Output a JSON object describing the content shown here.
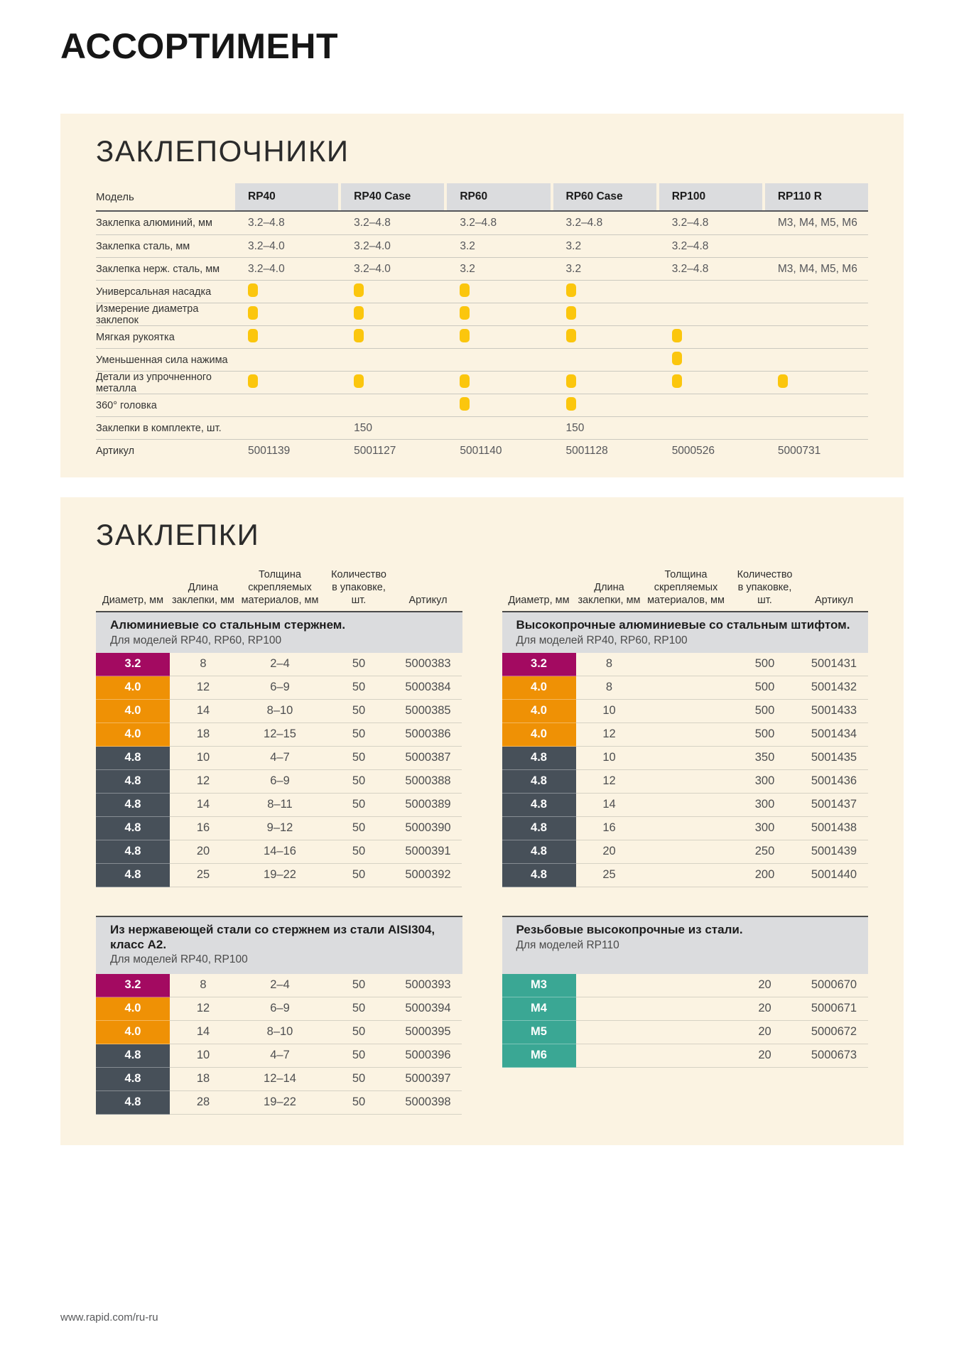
{
  "page": {
    "title": "АССОРТИМЕНТ",
    "footer_url": "www.rapid.com/ru-ru"
  },
  "colors": {
    "panel_bg": "#FBF3E2",
    "band_bg": "#DBDCDE",
    "dot_yellow": "#FBC60D",
    "magenta": "#A30A61",
    "orange": "#EF9105",
    "slate": "#475059",
    "teal": "#3AA794"
  },
  "riveters": {
    "section_title": "ЗАКЛЕПОЧНИКИ",
    "col_header": "Модель",
    "models": [
      "RP40",
      "RP40 Case",
      "RP60",
      "RP60 Case",
      "RP100",
      "RP110 R"
    ],
    "rows": [
      {
        "label": "Заклепка алюминий, мм",
        "type": "text",
        "values": [
          "3.2–4.8",
          "3.2–4.8",
          "3.2–4.8",
          "3.2–4.8",
          "3.2–4.8",
          "M3, M4, M5, M6"
        ]
      },
      {
        "label": "Заклепка сталь, мм",
        "type": "text",
        "values": [
          "3.2–4.0",
          "3.2–4.0",
          "3.2",
          "3.2",
          "3.2–4.8",
          ""
        ]
      },
      {
        "label": "Заклепка нерж. сталь, мм",
        "type": "text",
        "values": [
          "3.2–4.0",
          "3.2–4.0",
          "3.2",
          "3.2",
          "3.2–4.8",
          "M3, M4, M5, M6"
        ]
      },
      {
        "label": "Универсальная насадка",
        "type": "dot",
        "values": [
          true,
          true,
          true,
          true,
          false,
          false
        ]
      },
      {
        "label": "Измерение диаметра заклепок",
        "type": "dot",
        "values": [
          true,
          true,
          true,
          true,
          false,
          false
        ]
      },
      {
        "label": "Мягкая рукоятка",
        "type": "dot",
        "values": [
          true,
          true,
          true,
          true,
          true,
          false
        ]
      },
      {
        "label": "Уменьшенная сила нажима",
        "type": "dot",
        "values": [
          false,
          false,
          false,
          false,
          true,
          false
        ]
      },
      {
        "label": "Детали из упрочненного металла",
        "type": "dot",
        "values": [
          true,
          true,
          true,
          true,
          true,
          true
        ]
      },
      {
        "label": "360° головка",
        "type": "dot",
        "values": [
          false,
          false,
          true,
          true,
          false,
          false
        ]
      },
      {
        "label": "Заклепки в комплекте, шт.",
        "type": "text",
        "values": [
          "",
          "150",
          "",
          "150",
          "",
          ""
        ]
      },
      {
        "label": "Артикул",
        "type": "text",
        "values": [
          "5001139",
          "5001127",
          "5001140",
          "5001128",
          "5000526",
          "5000731"
        ]
      }
    ]
  },
  "rivets": {
    "section_title": "ЗАКЛЕПКИ",
    "col_headers": [
      "Диаметр, мм",
      "Длина\nзаклепки, мм",
      "Толщина\nскрепляемых\nматериалов, мм",
      "Количество\nв упаковке, шт.",
      "Артикул"
    ],
    "tables": [
      {
        "title": "Алюминиевые со стальным стержнем.",
        "subtitle": "Для моделей RP40, RP60, RP100",
        "show_headers": true,
        "rows": [
          {
            "diameter": "3.2",
            "color": "magenta",
            "length": "8",
            "thickness": "2–4",
            "qty": "50",
            "sku": "5000383"
          },
          {
            "diameter": "4.0",
            "color": "orange",
            "length": "12",
            "thickness": "6–9",
            "qty": "50",
            "sku": "5000384"
          },
          {
            "diameter": "4.0",
            "color": "orange",
            "length": "14",
            "thickness": "8–10",
            "qty": "50",
            "sku": "5000385"
          },
          {
            "diameter": "4.0",
            "color": "orange",
            "length": "18",
            "thickness": "12–15",
            "qty": "50",
            "sku": "5000386"
          },
          {
            "diameter": "4.8",
            "color": "slate",
            "length": "10",
            "thickness": "4–7",
            "qty": "50",
            "sku": "5000387"
          },
          {
            "diameter": "4.8",
            "color": "slate",
            "length": "12",
            "thickness": "6–9",
            "qty": "50",
            "sku": "5000388"
          },
          {
            "diameter": "4.8",
            "color": "slate",
            "length": "14",
            "thickness": "8–11",
            "qty": "50",
            "sku": "5000389"
          },
          {
            "diameter": "4.8",
            "color": "slate",
            "length": "16",
            "thickness": "9–12",
            "qty": "50",
            "sku": "5000390"
          },
          {
            "diameter": "4.8",
            "color": "slate",
            "length": "20",
            "thickness": "14–16",
            "qty": "50",
            "sku": "5000391"
          },
          {
            "diameter": "4.8",
            "color": "slate",
            "length": "25",
            "thickness": "19–22",
            "qty": "50",
            "sku": "5000392"
          }
        ]
      },
      {
        "title": "Высокопрочные алюминиевые со стальным штифтом.",
        "subtitle": "Для моделей RP40, RP60, RP100",
        "show_headers": true,
        "rows": [
          {
            "diameter": "3.2",
            "color": "magenta",
            "length": "8",
            "thickness": "",
            "qty": "500",
            "sku": "5001431"
          },
          {
            "diameter": "4.0",
            "color": "orange",
            "length": "8",
            "thickness": "",
            "qty": "500",
            "sku": "5001432"
          },
          {
            "diameter": "4.0",
            "color": "orange",
            "length": "10",
            "thickness": "",
            "qty": "500",
            "sku": "5001433"
          },
          {
            "diameter": "4.0",
            "color": "orange",
            "length": "12",
            "thickness": "",
            "qty": "500",
            "sku": "5001434"
          },
          {
            "diameter": "4.8",
            "color": "slate",
            "length": "10",
            "thickness": "",
            "qty": "350",
            "sku": "5001435"
          },
          {
            "diameter": "4.8",
            "color": "slate",
            "length": "12",
            "thickness": "",
            "qty": "300",
            "sku": "5001436"
          },
          {
            "diameter": "4.8",
            "color": "slate",
            "length": "14",
            "thickness": "",
            "qty": "300",
            "sku": "5001437"
          },
          {
            "diameter": "4.8",
            "color": "slate",
            "length": "16",
            "thickness": "",
            "qty": "300",
            "sku": "5001438"
          },
          {
            "diameter": "4.8",
            "color": "slate",
            "length": "20",
            "thickness": "",
            "qty": "250",
            "sku": "5001439"
          },
          {
            "diameter": "4.8",
            "color": "slate",
            "length": "25",
            "thickness": "",
            "qty": "200",
            "sku": "5001440"
          }
        ]
      },
      {
        "title": "Из нержавеющей стали со стержнем из стали AISI304, класс А2.",
        "subtitle": "Для моделей RP40, RP100",
        "show_headers": false,
        "rows": [
          {
            "diameter": "3.2",
            "color": "magenta",
            "length": "8",
            "thickness": "2–4",
            "qty": "50",
            "sku": "5000393"
          },
          {
            "diameter": "4.0",
            "color": "orange",
            "length": "12",
            "thickness": "6–9",
            "qty": "50",
            "sku": "5000394"
          },
          {
            "diameter": "4.0",
            "color": "orange",
            "length": "14",
            "thickness": "8–10",
            "qty": "50",
            "sku": "5000395"
          },
          {
            "diameter": "4.8",
            "color": "slate",
            "length": "10",
            "thickness": "4–7",
            "qty": "50",
            "sku": "5000396"
          },
          {
            "diameter": "4.8",
            "color": "slate",
            "length": "18",
            "thickness": "12–14",
            "qty": "50",
            "sku": "5000397"
          },
          {
            "diameter": "4.8",
            "color": "slate",
            "length": "28",
            "thickness": "19–22",
            "qty": "50",
            "sku": "5000398"
          }
        ]
      },
      {
        "title": "Резьбовые высокопрочные из стали.",
        "subtitle": "Для моделей RP110",
        "show_headers": false,
        "rows": [
          {
            "diameter": "M3",
            "color": "teal",
            "length": "",
            "thickness": "",
            "qty": "20",
            "sku": "5000670"
          },
          {
            "diameter": "M4",
            "color": "teal",
            "length": "",
            "thickness": "",
            "qty": "20",
            "sku": "5000671"
          },
          {
            "diameter": "M5",
            "color": "teal",
            "length": "",
            "thickness": "",
            "qty": "20",
            "sku": "5000672"
          },
          {
            "diameter": "M6",
            "color": "teal",
            "length": "",
            "thickness": "",
            "qty": "20",
            "sku": "5000673"
          }
        ]
      }
    ]
  }
}
